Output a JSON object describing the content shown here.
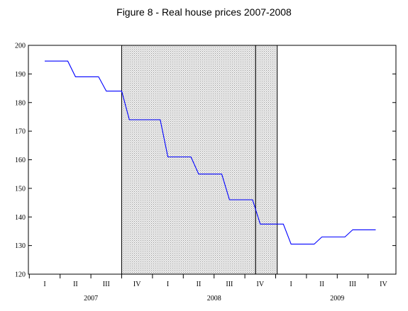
{
  "chart_data": {
    "type": "line",
    "title": "Figure 8 - Real house prices 2007-2008",
    "xlabel": "",
    "ylabel": "",
    "ylim": [
      120,
      200
    ],
    "yticks": [
      120,
      130,
      140,
      150,
      160,
      170,
      180,
      190,
      200
    ],
    "quarters": [
      "I",
      "II",
      "III",
      "IV",
      "I",
      "II",
      "III",
      "IV",
      "I",
      "II",
      "III",
      "IV"
    ],
    "years": [
      {
        "label": "2007",
        "quarter_index": 1.5
      },
      {
        "label": "2008",
        "quarter_index": 5.5
      },
      {
        "label": "2009",
        "quarter_index": 9.5
      }
    ],
    "grid": false,
    "legend": "none",
    "line_color": "#0000ff",
    "shading_color": "#d9d9d9",
    "shaded_regions": [
      {
        "from_quarter": 2.5,
        "to_quarter": 6.85
      },
      {
        "from_quarter": 6.85,
        "to_quarter": 7.55
      }
    ],
    "series": [
      {
        "x": [
          0,
          0.75,
          1,
          1.75,
          2,
          2.5,
          2.75,
          3.75,
          4,
          4.75,
          5,
          5.75,
          6,
          6.75,
          7,
          7.75,
          8,
          8.75,
          9,
          9.75,
          10,
          10.75
        ],
        "values": [
          194.5,
          194.5,
          189,
          189,
          184,
          184,
          174,
          174,
          161,
          161,
          155,
          155,
          146,
          146,
          137.5,
          137.5,
          130.5,
          130.5,
          133,
          133,
          135.5,
          135.5
        ]
      }
    ]
  }
}
